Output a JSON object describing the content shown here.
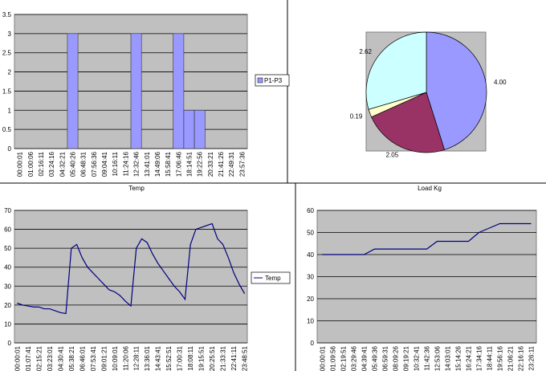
{
  "chart_data": [
    {
      "type": "bar",
      "categories": [
        "00:00:01",
        "01:00:06",
        "02:16:11",
        "03:24:16",
        "04:32:21",
        "05:40:26",
        "06:48:31",
        "07:56:36",
        "09:04:41",
        "10:16:11",
        "11:24:16",
        "12:32:46",
        "13:41:01",
        "14:49:06",
        "15:58:41",
        "17:06:46",
        "18:14:51",
        "19:22:56",
        "20:33:21",
        "21:41:26",
        "22:49:31",
        "23:57:36"
      ],
      "series": [
        {
          "name": "P1-P3",
          "color": "#9999ff",
          "values": [
            0,
            0,
            0,
            0,
            0,
            3,
            0,
            0,
            0,
            0,
            0,
            3,
            0,
            0,
            0,
            3,
            1,
            1,
            0,
            0,
            0,
            0
          ]
        }
      ],
      "ylim": [
        0,
        3.5
      ],
      "yticks": [
        0,
        0.5,
        1,
        1.5,
        2,
        2.5,
        3,
        3.5
      ],
      "grid": true,
      "legend": "right"
    },
    {
      "type": "pie",
      "values": [
        4,
        2.05,
        0.19,
        2.62
      ],
      "value_labels": [
        "4.00",
        "2.05",
        "0.19",
        "2.62"
      ],
      "colors": [
        "#9999ff",
        "#993366",
        "#ffffcc",
        "#ccffff"
      ]
    },
    {
      "type": "line",
      "title": "Temp",
      "categories": [
        "00:00:01",
        null,
        "01:07:41",
        null,
        "02:15:21",
        null,
        "03:23:01",
        null,
        "04:30:41",
        null,
        "05:38:21",
        null,
        "06:46:01",
        null,
        "07:53:41",
        null,
        "09:01:21",
        null,
        "10:09:01",
        null,
        "11:20:06",
        null,
        "12:28:11",
        null,
        "13:36:01",
        null,
        "14:43:41",
        null,
        "15:52:51",
        null,
        "17:00:31",
        null,
        "18:08:11",
        null,
        "19:15:51",
        null,
        "20:25:51",
        null,
        "21:33:31",
        null,
        "22:41:11",
        null,
        "23:48:51"
      ],
      "series": [
        {
          "name": "Temp",
          "color": "#000080",
          "values": [
            21,
            20,
            19.5,
            19,
            19,
            18,
            18,
            17,
            16,
            15.5,
            50,
            52,
            45,
            40,
            37,
            34,
            31,
            28,
            27,
            25,
            22,
            19.5,
            50,
            55,
            53,
            47,
            42,
            38,
            34,
            30,
            27,
            23,
            52,
            60,
            61,
            62,
            63,
            55,
            52,
            45,
            37,
            31,
            26
          ]
        }
      ],
      "ylim": [
        0,
        70
      ],
      "yticks": [
        0,
        10,
        20,
        30,
        40,
        50,
        60,
        70
      ],
      "grid": true,
      "legend": "right"
    },
    {
      "type": "line",
      "title": "Load Kg",
      "categories": [
        "00:00:01",
        "01:09:56",
        "02:19:51",
        "03:29:46",
        "04:39:41",
        "05:49:36",
        "06:59:31",
        "08:09:26",
        "09:19:21",
        "10:32:41",
        "11:42:36",
        "12:53:06",
        "14:03:01",
        "15:14:26",
        "16:24:21",
        "17:34:16",
        "18:44:11",
        "19:56:16",
        "21:06:21",
        "22:16:16",
        "23:26:11"
      ],
      "values": [
        40,
        40,
        40,
        40,
        40,
        42.5,
        42.5,
        42.5,
        42.5,
        42.5,
        42.5,
        46,
        46,
        46,
        46,
        50,
        52,
        54,
        54,
        54,
        54
      ],
      "color": "#000080",
      "ylim": [
        0,
        60
      ],
      "yticks": [
        0,
        10,
        20,
        30,
        40,
        50,
        60
      ],
      "grid": true
    }
  ]
}
